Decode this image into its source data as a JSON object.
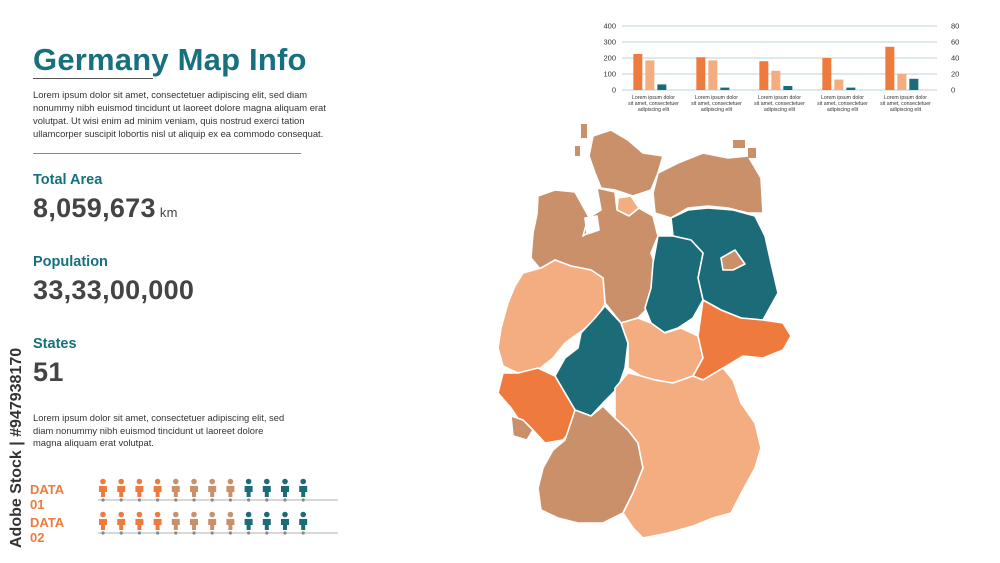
{
  "header": {
    "title": "Germany Map Info"
  },
  "intro_text": "Lorem ipsum dolor sit amet, consectetuer adipiscing elit, sed diam nonummy nibh euismod tincidunt ut laoreet dolore magna aliquam erat volutpat. Ut wisi enim ad minim veniam, quis nostrud exerci tation ullamcorper suscipit lobortis nisl ut aliquip ex ea commodo consequat.",
  "stats": {
    "area_label": "Total Area",
    "area_value": "8,059,673",
    "area_unit": "km",
    "population_label": "Population",
    "population_value": "33,33,00,000",
    "states_label": "States",
    "states_value": "51"
  },
  "description_text": "Lorem ipsum dolor sit amet, consectetuer adipiscing elit, sed diam nonummy nibh euismod tincidunt ut laoreet dolore magna aliquam erat volutpat.",
  "data_rows": [
    {
      "label": "DATA 01",
      "icon_colors": [
        "#ef7a3e",
        "#ef7a3e",
        "#ef7a3e",
        "#ef7a3e",
        "#c9906a",
        "#c9906a",
        "#c9906a",
        "#c9906a",
        "#1b6c78",
        "#1b6c78",
        "#1b6c78",
        "#1b6c78"
      ]
    },
    {
      "label": "DATA 02",
      "icon_colors": [
        "#ef7a3e",
        "#ef7a3e",
        "#ef7a3e",
        "#ef7a3e",
        "#c9906a",
        "#c9906a",
        "#c9906a",
        "#c9906a",
        "#1b6c78",
        "#1b6c78",
        "#1b6c78",
        "#1b6c78"
      ]
    }
  ],
  "icon_name": "person-icon",
  "watermark": "Adobe Stock | #947938170",
  "colors": {
    "teal": "#16707d",
    "orange": "#ef7a3e",
    "light_orange": "#f4ad80",
    "brown": "#c9906a",
    "dark_teal": "#1b6c78"
  },
  "chart_data": {
    "type": "bar",
    "categories": [
      "Lorem ipsum dolor sit amet, consectetuer adipiscing elit",
      "Lorem ipsum dolor sit amet, consectetuer adipiscing elit",
      "Lorem ipsum dolor sit amet, consectetuer adipiscing elit",
      "Lorem ipsum dolor sit amet, consectetuer adipiscing elit",
      "Lorem ipsum dolor sit amet, consectetuer adipiscing elit"
    ],
    "series": [
      {
        "values": [
          225,
          205,
          180,
          200,
          270
        ],
        "color": "#ef7a3e",
        "axis": "left"
      },
      {
        "values": [
          185,
          185,
          120,
          65,
          100
        ],
        "color": "#f4ad80",
        "axis": "left"
      },
      {
        "values": [
          7,
          3,
          5,
          3,
          14
        ],
        "color": "#1b6c78",
        "axis": "right"
      }
    ],
    "ylim_left": [
      0,
      400
    ],
    "yticks_left": [
      0,
      100,
      200,
      300,
      400
    ],
    "ylim_right": [
      0,
      80
    ],
    "yticks_right": [
      0,
      20,
      40,
      60,
      80
    ],
    "grid": true
  }
}
